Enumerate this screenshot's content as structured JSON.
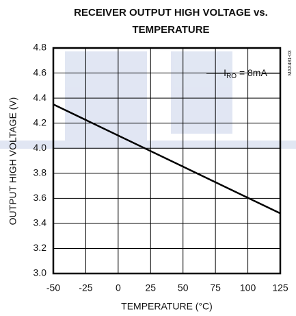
{
  "chart_data": {
    "type": "line",
    "title": [
      "RECEIVER OUTPUT HIGH VOLTAGE vs.",
      "TEMPERATURE"
    ],
    "x_label": "TEMPERATURE (°C)",
    "y_label": "OUTPUT HIGH VOLTAGE (V)",
    "annotation": {
      "main": "I",
      "subscript": "RO",
      "rest": " = 8mA"
    },
    "side_label": "MAX481-03",
    "x": [
      -50,
      125
    ],
    "values": [
      4.35,
      3.48
    ],
    "color": "#000000",
    "xlim": [
      -50,
      125
    ],
    "xticks": [
      -50,
      -25,
      0,
      25,
      50,
      75,
      100,
      125
    ],
    "ylim": [
      3.0,
      4.8
    ],
    "yticks": [
      {
        "value": 3,
        "label": "3.0"
      },
      3.2,
      3.4,
      3.6,
      3.8,
      {
        "value": 4,
        "label": "4.0"
      },
      4.2,
      4.4,
      4.6,
      4.8
    ],
    "grid": true
  }
}
